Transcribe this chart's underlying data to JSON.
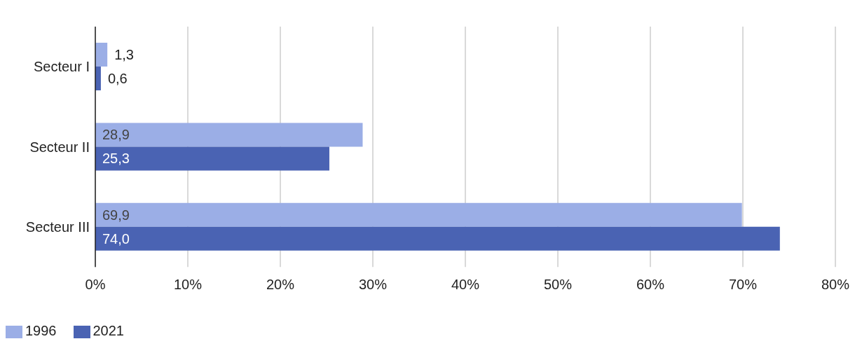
{
  "chart_data": {
    "type": "bar",
    "orientation": "horizontal",
    "categories": [
      "Secteur I",
      "Secteur II",
      "Secteur III"
    ],
    "series": [
      {
        "name": "1996",
        "color": "#9baee6",
        "values": [
          1.3,
          28.9,
          69.9
        ],
        "value_labels": [
          "1,3",
          "28,9",
          "69,9"
        ]
      },
      {
        "name": "2021",
        "color": "#4a63b3",
        "values": [
          0.6,
          25.3,
          74.0
        ],
        "value_labels": [
          "0,6",
          "25,3",
          "74,0"
        ]
      }
    ],
    "xlim": [
      0,
      80
    ],
    "xticks": [
      {
        "value": 0,
        "label": "0%"
      },
      {
        "value": 10,
        "label": "10%"
      },
      {
        "value": 20,
        "label": "20%"
      },
      {
        "value": 30,
        "label": "30%"
      },
      {
        "value": 40,
        "label": "40%"
      },
      {
        "value": 50,
        "label": "50%"
      },
      {
        "value": 60,
        "label": "60%"
      },
      {
        "value": 70,
        "label": "70%"
      },
      {
        "value": 80,
        "label": "80%"
      }
    ],
    "grid": "x",
    "legend": "bottom left"
  }
}
